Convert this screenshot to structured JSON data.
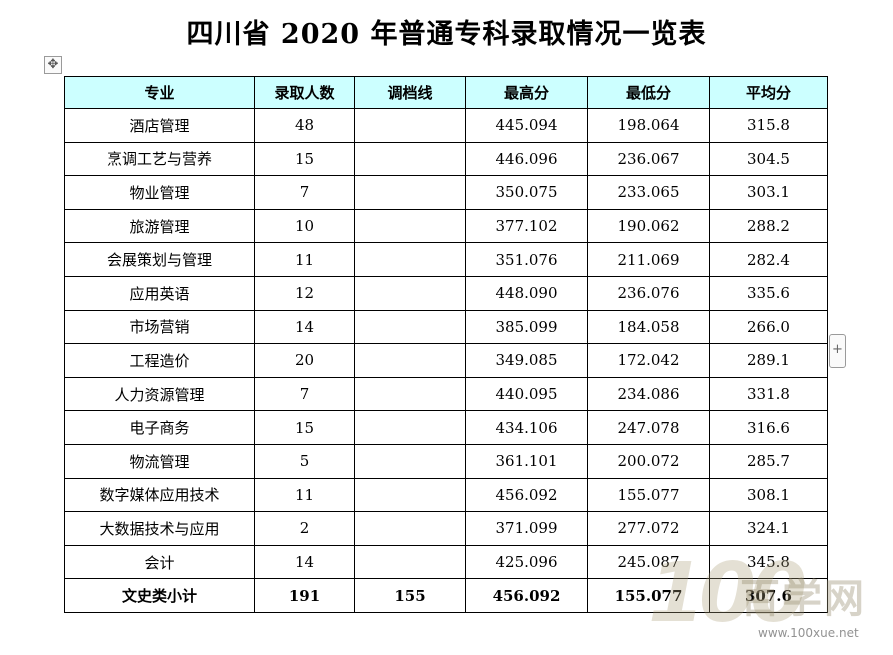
{
  "title": "四川省 2020 年普通专科录取情况一览表",
  "icons": {
    "move": "move-icon",
    "add": "plus-icon"
  },
  "table": {
    "headers": [
      "专业",
      "录取人数",
      "调档线",
      "最高分",
      "最低分",
      "平均分"
    ],
    "rows": [
      [
        "酒店管理",
        "48",
        "",
        "445.094",
        "198.064",
        "315.8"
      ],
      [
        "烹调工艺与营养",
        "15",
        "",
        "446.096",
        "236.067",
        "304.5"
      ],
      [
        "物业管理",
        "7",
        "",
        "350.075",
        "233.065",
        "303.1"
      ],
      [
        "旅游管理",
        "10",
        "",
        "377.102",
        "190.062",
        "288.2"
      ],
      [
        "会展策划与管理",
        "11",
        "",
        "351.076",
        "211.069",
        "282.4"
      ],
      [
        "应用英语",
        "12",
        "",
        "448.090",
        "236.076",
        "335.6"
      ],
      [
        "市场营销",
        "14",
        "",
        "385.099",
        "184.058",
        "266.0"
      ],
      [
        "工程造价",
        "20",
        "",
        "349.085",
        "172.042",
        "289.1"
      ],
      [
        "人力资源管理",
        "7",
        "",
        "440.095",
        "234.086",
        "331.8"
      ],
      [
        "电子商务",
        "15",
        "",
        "434.106",
        "247.078",
        "316.6"
      ],
      [
        "物流管理",
        "5",
        "",
        "361.101",
        "200.072",
        "285.7"
      ],
      [
        "数字媒体应用技术",
        "11",
        "",
        "456.092",
        "155.077",
        "308.1"
      ],
      [
        "大数据技术与应用",
        "2",
        "",
        "371.099",
        "277.072",
        "324.1"
      ],
      [
        "会计",
        "14",
        "",
        "425.096",
        "245.087",
        "345.8"
      ]
    ],
    "total": [
      "文史类小计",
      "191",
      "155",
      "456.092",
      "155.077",
      "307.6"
    ]
  },
  "watermark": {
    "number": "100",
    "name": "百学网",
    "url": "www.100xue.net"
  }
}
